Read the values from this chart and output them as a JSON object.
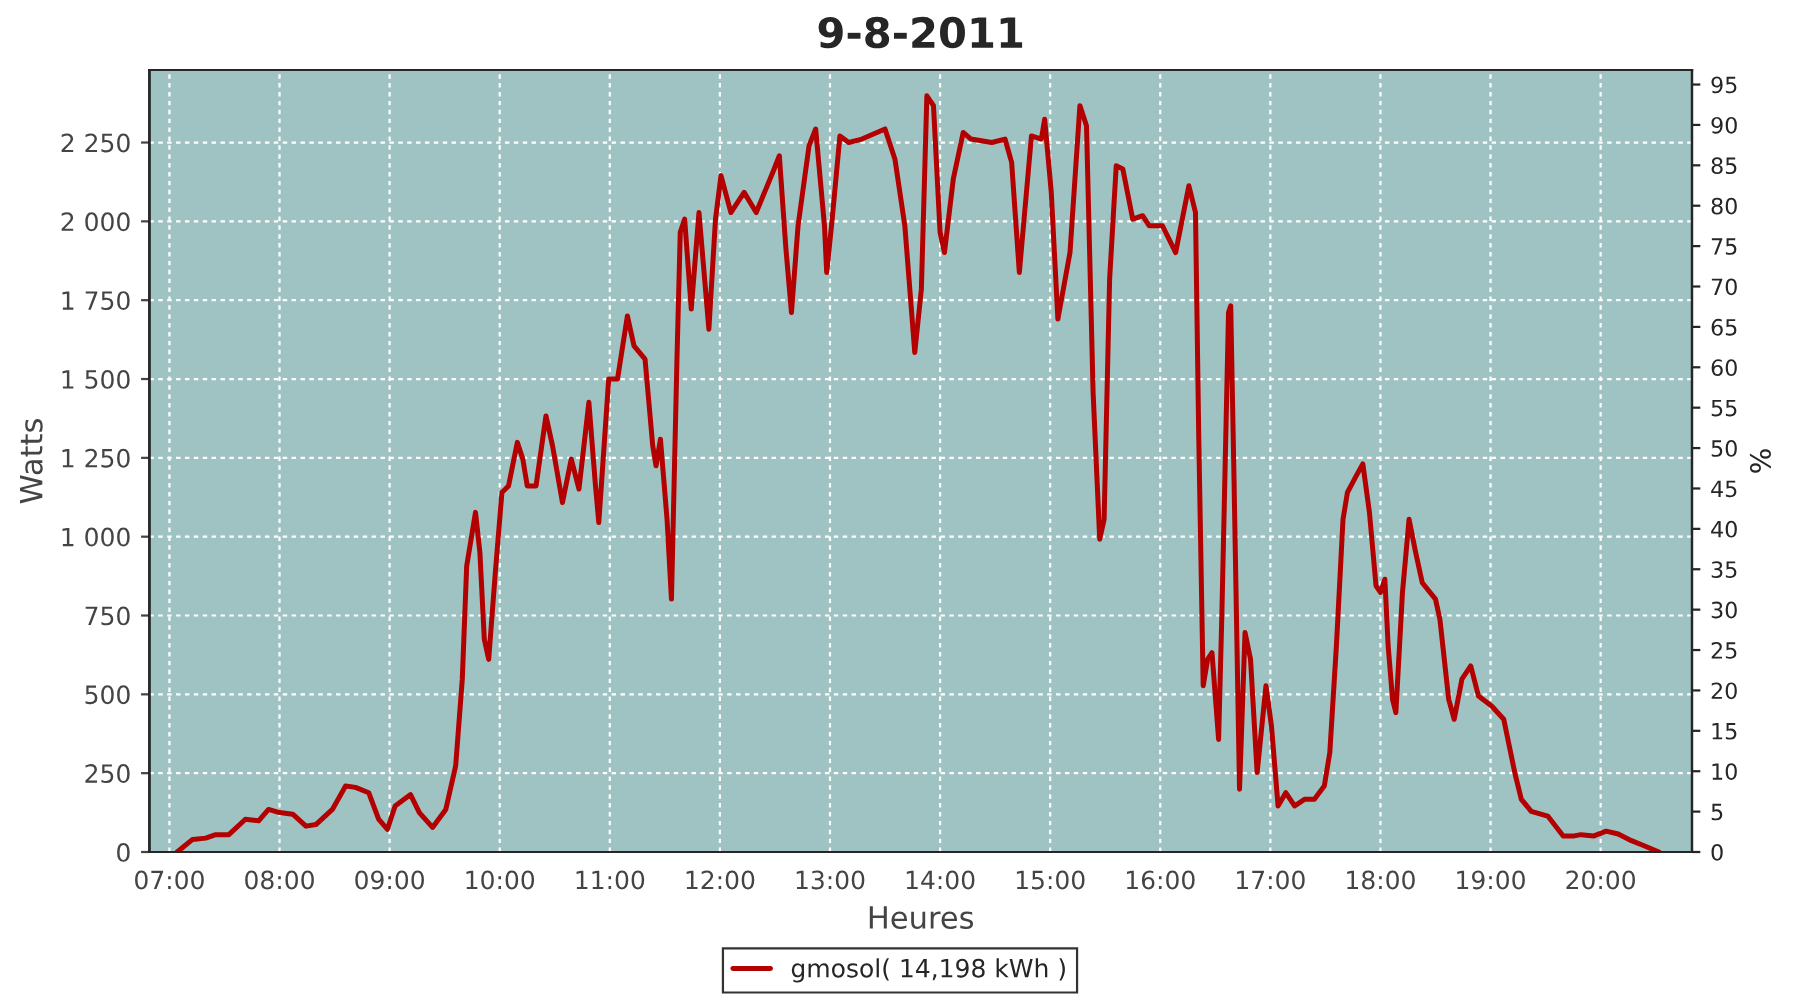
{
  "chart_data": {
    "type": "line",
    "title": "9-8-2011",
    "xlabel": "Heures",
    "ylabel": "Watts",
    "y2label": "%",
    "xlim": [
      6.818,
      20.83
    ],
    "ylim": [
      0,
      2480
    ],
    "y2lim": [
      0,
      96.8
    ],
    "xticks": [
      {
        "value": 7,
        "label": "07:00"
      },
      {
        "value": 8,
        "label": "08:00"
      },
      {
        "value": 9,
        "label": "09:00"
      },
      {
        "value": 10,
        "label": "10:00"
      },
      {
        "value": 11,
        "label": "11:00"
      },
      {
        "value": 12,
        "label": "12:00"
      },
      {
        "value": 13,
        "label": "13:00"
      },
      {
        "value": 14,
        "label": "14:00"
      },
      {
        "value": 15,
        "label": "15:00"
      },
      {
        "value": 16,
        "label": "16:00"
      },
      {
        "value": 17,
        "label": "17:00"
      },
      {
        "value": 18,
        "label": "18:00"
      },
      {
        "value": 19,
        "label": "19:00"
      },
      {
        "value": 20,
        "label": "20:00"
      }
    ],
    "yticks": [
      0,
      250,
      500,
      750,
      {
        "value": 1000,
        "label": "1 000"
      },
      {
        "value": 1250,
        "label": "1 250"
      },
      {
        "value": 1500,
        "label": "1 500"
      },
      {
        "value": 1750,
        "label": "1 750"
      },
      {
        "value": 2000,
        "label": "2 000"
      },
      {
        "value": 2250,
        "label": "2 250"
      }
    ],
    "y2ticks": [
      0,
      5,
      10,
      15,
      20,
      25,
      30,
      35,
      40,
      45,
      50,
      55,
      60,
      65,
      70,
      75,
      80,
      85,
      90,
      95
    ],
    "grid": true,
    "legend": "bottom",
    "marker": "none",
    "line_style": "solid",
    "series": [
      {
        "name": "gmosol( 14,198 kWh )",
        "color": "#b30000",
        "x": [
          7.07,
          7.21,
          7.33,
          7.42,
          7.54,
          7.69,
          7.81,
          7.9,
          8.0,
          8.12,
          8.24,
          8.33,
          8.48,
          8.6,
          8.69,
          8.81,
          8.9,
          8.98,
          9.05,
          9.19,
          9.27,
          9.39,
          9.51,
          9.6,
          9.66,
          9.7,
          9.78,
          9.82,
          9.86,
          9.9,
          9.96,
          10.02,
          10.08,
          10.16,
          10.21,
          10.25,
          10.33,
          10.42,
          10.48,
          10.57,
          10.65,
          10.72,
          10.81,
          10.87,
          10.9,
          10.99,
          11.07,
          11.16,
          11.22,
          11.32,
          11.39,
          11.42,
          11.46,
          11.52,
          11.56,
          11.61,
          11.64,
          11.68,
          11.74,
          11.81,
          11.9,
          11.96,
          12.01,
          12.1,
          12.22,
          12.33,
          12.48,
          12.54,
          12.6,
          12.65,
          12.71,
          12.81,
          12.87,
          12.95,
          12.97,
          13.02,
          13.09,
          13.17,
          13.29,
          13.5,
          13.59,
          13.68,
          13.77,
          13.83,
          13.88,
          13.94,
          14.0,
          14.04,
          14.12,
          14.21,
          14.28,
          14.47,
          14.59,
          14.65,
          14.72,
          14.83,
          14.92,
          14.95,
          15.01,
          15.07,
          15.18,
          15.27,
          15.33,
          15.39,
          15.45,
          15.49,
          15.54,
          15.6,
          15.66,
          15.75,
          15.84,
          15.9,
          16.02,
          16.14,
          16.26,
          16.32,
          16.35,
          16.39,
          16.43,
          16.47,
          16.53,
          16.56,
          16.62,
          16.64,
          16.67,
          16.72,
          16.77,
          16.82,
          16.88,
          16.96,
          17.01,
          17.07,
          17.14,
          17.22,
          17.31,
          17.4,
          17.49,
          17.54,
          17.6,
          17.66,
          17.7,
          17.78,
          17.84,
          17.9,
          17.96,
          18.0,
          18.04,
          18.07,
          18.11,
          18.14,
          18.2,
          18.26,
          18.32,
          18.38,
          18.5,
          18.54,
          18.62,
          18.67,
          18.74,
          18.82,
          18.89,
          19.01,
          19.12,
          19.22,
          19.28,
          19.37,
          19.52,
          19.66,
          19.76,
          19.82,
          19.94,
          20.05,
          20.16,
          20.28,
          20.4,
          20.53
        ],
        "values": [
          0,
          40,
          44,
          55,
          55,
          104,
          99,
          135,
          125,
          120,
          82,
          87,
          135,
          209,
          205,
          188,
          104,
          72,
          146,
          182,
          125,
          78,
          135,
          273,
          548,
          907,
          1077,
          950,
          675,
          611,
          886,
          1140,
          1161,
          1299,
          1246,
          1161,
          1161,
          1383,
          1288,
          1108,
          1246,
          1151,
          1426,
          1161,
          1045,
          1500,
          1500,
          1700,
          1605,
          1563,
          1288,
          1225,
          1309,
          1055,
          802,
          1563,
          1965,
          2007,
          1722,
          2028,
          1658,
          2007,
          2145,
          2028,
          2092,
          2028,
          2155,
          2208,
          1912,
          1711,
          1986,
          2240,
          2293,
          1986,
          1838,
          2007,
          2271,
          2250,
          2261,
          2293,
          2197,
          1986,
          1584,
          1785,
          2398,
          2367,
          1965,
          1901,
          2134,
          2282,
          2261,
          2250,
          2261,
          2187,
          1838,
          2271,
          2261,
          2324,
          2092,
          1690,
          1901,
          2367,
          2303,
          1457,
          992,
          1055,
          1817,
          2176,
          2166,
          2007,
          2018,
          1986,
          1986,
          1901,
          2113,
          2028,
          1309,
          527,
          611,
          632,
          357,
          759,
          1711,
          1732,
          1182,
          199,
          696,
          611,
          252,
          527,
          400,
          146,
          188,
          146,
          167,
          167,
          209,
          315,
          654,
          1055,
          1140,
          1193,
          1231,
          1077,
          844,
          823,
          865,
          654,
          484,
          442,
          823,
          1055,
          950,
          854,
          802,
          738,
          484,
          421,
          548,
          590,
          495,
          463,
          421,
          252,
          167,
          129,
          114,
          51,
          51,
          55,
          51,
          66,
          57,
          36,
          19,
          0
        ]
      }
    ]
  }
}
